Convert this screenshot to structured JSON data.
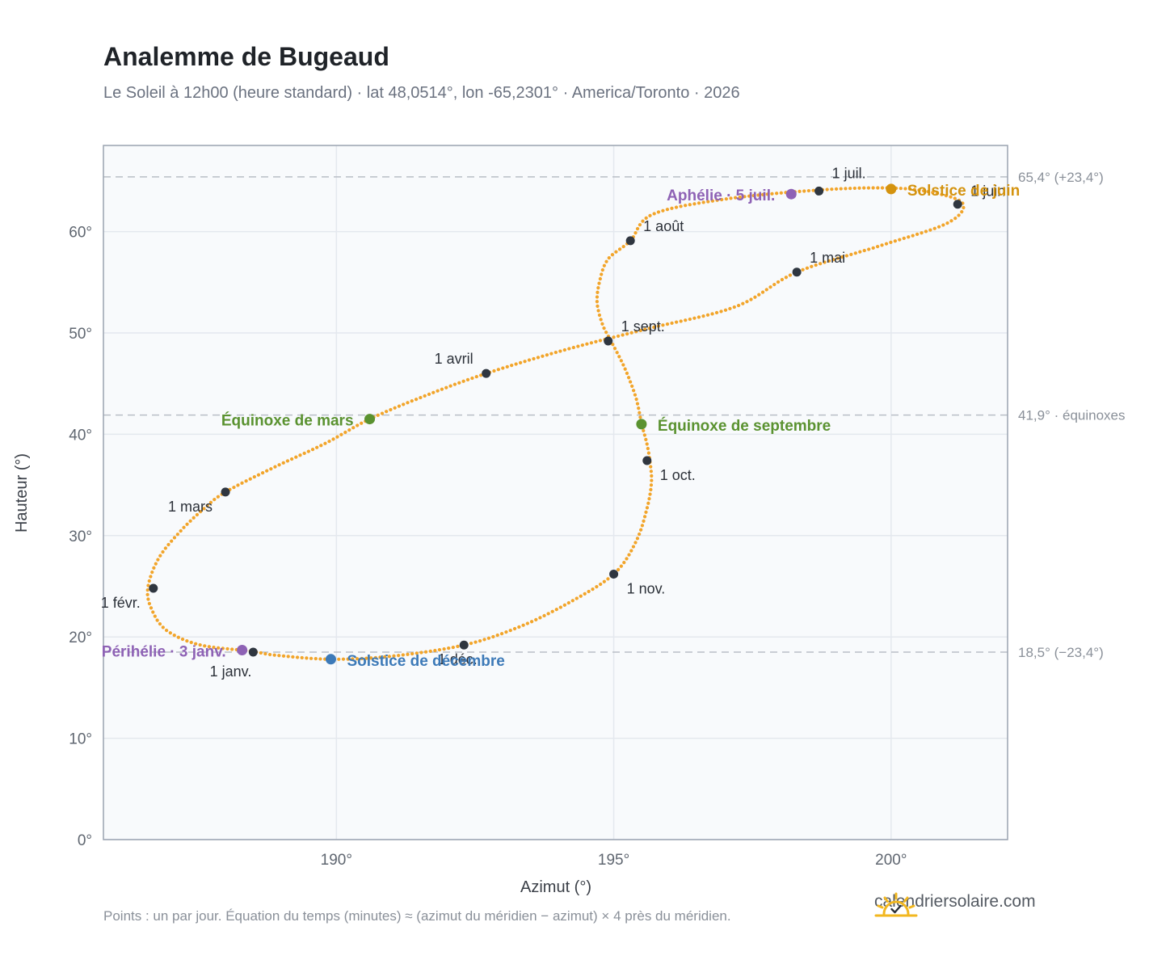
{
  "header": {
    "title": "Analemme de Bugeaud",
    "subtitle": "Le Soleil à 12h00 (heure standard) · lat 48,0514°, lon -65,2301° · America/Toronto · 2026"
  },
  "footer": {
    "note": "Points : un par jour. Équation du temps (minutes) ≈ (azimut du méridien − azimut) × 4 près du méridien.",
    "brand": "calendriersolaire.com"
  },
  "colors": {
    "curve": "#f2a52b",
    "month_marker": "#2f3640",
    "equinox": "#5a9230",
    "june_solstice": "#d4930f",
    "december_solstice": "#3d7ab8",
    "apsis": "#8e62b5",
    "reference_line": "#b9bec6",
    "grid": "#e4e8ee",
    "plot_bg": "#f8fafc",
    "frame": "#9aa3b0"
  },
  "chart_data": {
    "type": "scatter",
    "xlabel": "Azimut (°)",
    "ylabel": "Hauteur (°)",
    "xlim": [
      185.8,
      202.1
    ],
    "ylim": [
      0,
      68.5
    ],
    "xticks": [
      190,
      195,
      200
    ],
    "xtick_labels": [
      "190°",
      "195°",
      "200°"
    ],
    "yticks": [
      0,
      10,
      20,
      30,
      40,
      50,
      60
    ],
    "ytick_labels": [
      "0°",
      "10°",
      "20°",
      "30°",
      "40°",
      "50°",
      "60°"
    ],
    "grid": true,
    "reference_lines": [
      {
        "y": 65.4,
        "label": "65,4° (+23,4°)"
      },
      {
        "y": 41.9,
        "label": "41,9° · équinoxes"
      },
      {
        "y": 18.5,
        "label": "18,5° (−23,4°)"
      }
    ],
    "curve_points": [
      [
        188.45,
        18.6
      ],
      [
        187.55,
        19.2
      ],
      [
        186.95,
        20.6
      ],
      [
        186.68,
        22.6
      ],
      [
        186.6,
        24.8
      ],
      [
        186.8,
        27.8
      ],
      [
        187.2,
        30.5
      ],
      [
        187.6,
        32.6
      ],
      [
        188.0,
        34.3
      ],
      [
        188.9,
        36.8
      ],
      [
        189.8,
        39.1
      ],
      [
        190.6,
        41.5
      ],
      [
        191.6,
        43.8
      ],
      [
        192.7,
        46.0
      ],
      [
        194.1,
        48.3
      ],
      [
        195.6,
        50.4
      ],
      [
        197.2,
        52.6
      ],
      [
        198.3,
        56.0
      ],
      [
        199.8,
        58.6
      ],
      [
        201.0,
        60.8
      ],
      [
        201.3,
        62.7
      ],
      [
        200.8,
        63.8
      ],
      [
        200.0,
        64.3
      ],
      [
        198.7,
        64.1
      ],
      [
        197.0,
        63.2
      ],
      [
        195.7,
        61.7
      ],
      [
        195.3,
        59.1
      ],
      [
        194.9,
        57.3
      ],
      [
        194.75,
        55.2
      ],
      [
        194.7,
        53.0
      ],
      [
        194.8,
        50.8
      ],
      [
        194.95,
        49.2
      ],
      [
        195.2,
        46.5
      ],
      [
        195.4,
        43.6
      ],
      [
        195.5,
        41.1
      ],
      [
        195.6,
        39.0
      ],
      [
        195.65,
        37.4
      ],
      [
        195.68,
        35.3
      ],
      [
        195.6,
        32.7
      ],
      [
        195.4,
        29.4
      ],
      [
        195.0,
        26.2
      ],
      [
        194.2,
        23.4
      ],
      [
        193.3,
        21.0
      ],
      [
        192.3,
        19.2
      ],
      [
        191.0,
        18.1
      ],
      [
        189.9,
        17.8
      ],
      [
        188.9,
        18.2
      ],
      [
        188.45,
        18.6
      ]
    ],
    "month_markers": [
      {
        "label": "1 janv.",
        "x": 188.5,
        "y": 18.5
      },
      {
        "label": "1 févr.",
        "x": 186.7,
        "y": 24.8
      },
      {
        "label": "1 mars",
        "x": 188.0,
        "y": 34.3
      },
      {
        "label": "1 avril",
        "x": 192.7,
        "y": 46.0
      },
      {
        "label": "1 mai",
        "x": 198.3,
        "y": 56.0
      },
      {
        "label": "1 juin",
        "x": 201.2,
        "y": 62.7
      },
      {
        "label": "1 juil.",
        "x": 198.7,
        "y": 64.0
      },
      {
        "label": "1 août",
        "x": 195.3,
        "y": 59.1
      },
      {
        "label": "1 sept.",
        "x": 194.9,
        "y": 49.2
      },
      {
        "label": "1 oct.",
        "x": 195.6,
        "y": 37.4
      },
      {
        "label": "1 nov.",
        "x": 195.0,
        "y": 26.2
      },
      {
        "label": "1 déc.",
        "x": 192.3,
        "y": 19.2
      }
    ],
    "events": [
      {
        "label": "Équinoxe de mars",
        "x": 190.6,
        "y": 41.5,
        "kind": "equinox"
      },
      {
        "label": "Équinoxe de septembre",
        "x": 195.5,
        "y": 41.0,
        "kind": "equinox"
      },
      {
        "label": "Solstice de juin",
        "x": 200.0,
        "y": 64.2,
        "kind": "june_solstice"
      },
      {
        "label": "Solstice de décembre",
        "x": 189.9,
        "y": 17.8,
        "kind": "december_solstice"
      },
      {
        "label": "Aphélie · 5 juil.",
        "x": 198.2,
        "y": 63.7,
        "kind": "apsis"
      },
      {
        "label": "Périhélie · 3 janv.",
        "x": 188.3,
        "y": 18.7,
        "kind": "apsis"
      }
    ]
  }
}
